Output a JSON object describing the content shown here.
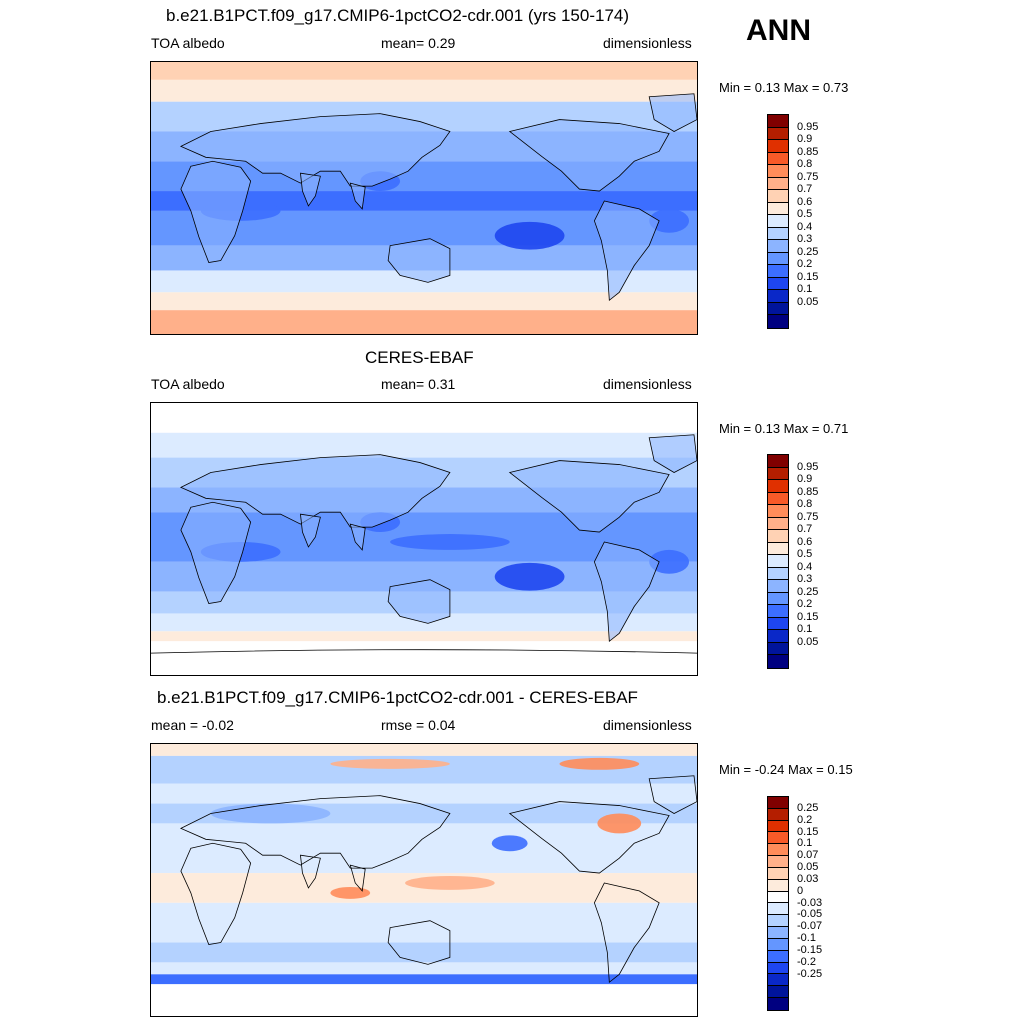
{
  "season": "ANN",
  "panels": [
    {
      "title": "b.e21.B1PCT.f09_g17.CMIP6-1pctCO2-cdr.001 (yrs 150-174)",
      "left": "TOA albedo",
      "center": "mean=   0.29",
      "right": "dimensionless",
      "minmax": "Min =   0.13 Max =   0.73",
      "scale": "abs",
      "variant": "model"
    },
    {
      "title": "CERES-EBAF",
      "left": "TOA albedo",
      "center": "mean=   0.31",
      "right": "dimensionless",
      "minmax": "Min =   0.13 Max =   0.71",
      "scale": "abs",
      "variant": "obs"
    },
    {
      "title": "b.e21.B1PCT.f09_g17.CMIP6-1pctCO2-cdr.001 - CERES-EBAF",
      "left": "mean =  -0.02",
      "center": "rmse =   0.04",
      "right": "dimensionless",
      "minmax": "Min =  -0.24 Max =   0.15",
      "scale": "diff",
      "variant": "diff"
    }
  ],
  "colorbars": {
    "abs": {
      "colors": [
        "#800000",
        "#b41e00",
        "#e03000",
        "#f85a28",
        "#ff8c5a",
        "#ffb08a",
        "#ffd2b4",
        "#fdebdc",
        "#dcebff",
        "#b4d2ff",
        "#8cb4ff",
        "#6496ff",
        "#3c6eff",
        "#1e46f0",
        "#0a28c8",
        "#00149b",
        "#000080"
      ],
      "labels": [
        "0.95",
        "0.9",
        "0.85",
        "0.8",
        "0.75",
        "0.7",
        "0.6",
        "0.5",
        "0.4",
        "0.3",
        "0.25",
        "0.2",
        "0.15",
        "0.1",
        "0.05"
      ]
    },
    "diff": {
      "colors": [
        "#800000",
        "#b41e00",
        "#e03000",
        "#f85a28",
        "#ff8c5a",
        "#ffb08a",
        "#ffd2b4",
        "#fdebdc",
        "#ffffff",
        "#dcebff",
        "#b4d2ff",
        "#8cb4ff",
        "#6496ff",
        "#3c6eff",
        "#1e46f0",
        "#0a28c8",
        "#00149b",
        "#000080"
      ],
      "labels": [
        "0.25",
        "0.2",
        "0.15",
        "0.1",
        "0.07",
        "0.05",
        "0.03",
        "0",
        "-0.03",
        "-0.05",
        "-0.07",
        "-0.1",
        "-0.15",
        "-0.2",
        "-0.25"
      ]
    }
  }
}
